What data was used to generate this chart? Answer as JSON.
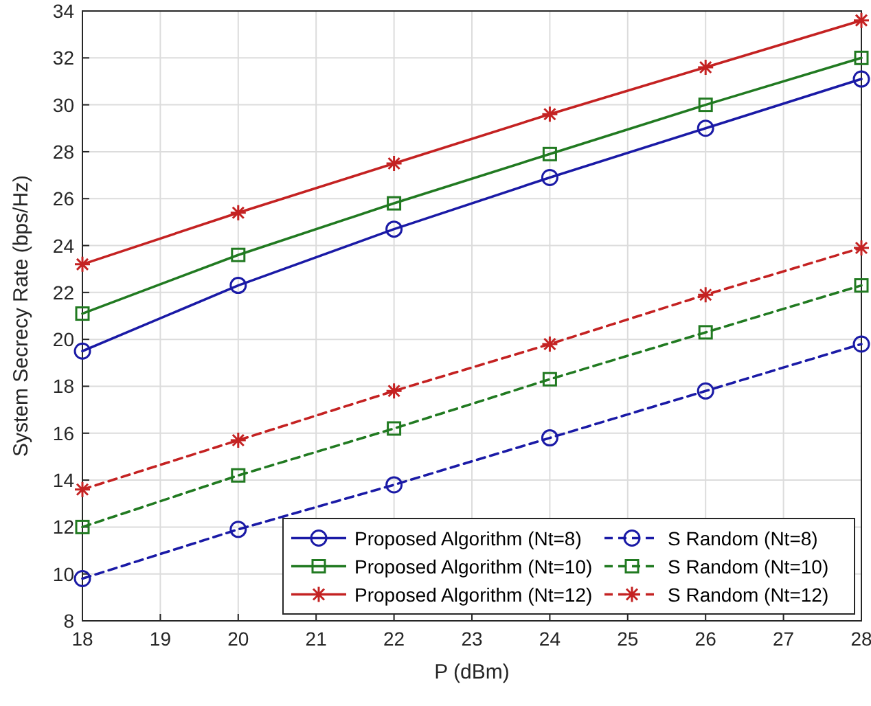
{
  "chart_data": {
    "type": "line",
    "xlabel": "P (dBm)",
    "ylabel": "System Secrecy Rate (bps/Hz)",
    "x": [
      18,
      20,
      22,
      24,
      26,
      28
    ],
    "xlim": [
      18,
      28
    ],
    "xticks": [
      18,
      19,
      20,
      21,
      22,
      23,
      24,
      25,
      26,
      27,
      28
    ],
    "ylim": [
      8,
      34
    ],
    "yticks": [
      8,
      10,
      12,
      14,
      16,
      18,
      20,
      22,
      24,
      26,
      28,
      30,
      32,
      34
    ],
    "grid": true,
    "legend": "bottom right",
    "series": [
      {
        "name": "Proposed Algorithm (Nt=8)",
        "color": "#1a1aa6",
        "marker": "circle",
        "line_style": "solid",
        "values": [
          19.5,
          22.3,
          24.7,
          26.9,
          29.0,
          31.1
        ]
      },
      {
        "name": "Proposed Algorithm (Nt=10)",
        "color": "#217a21",
        "marker": "square",
        "line_style": "solid",
        "values": [
          21.1,
          23.6,
          25.8,
          27.9,
          30.0,
          32.0
        ]
      },
      {
        "name": "Proposed Algorithm (Nt=12)",
        "color": "#c42222",
        "marker": "cross",
        "line_style": "solid",
        "values": [
          23.2,
          25.4,
          27.5,
          29.6,
          31.6,
          33.6
        ]
      },
      {
        "name": "S Random (Nt=8)",
        "color": "#1a1aa6",
        "marker": "circle",
        "line_style": "dashed",
        "values": [
          9.8,
          11.9,
          13.8,
          15.8,
          17.8,
          19.8
        ]
      },
      {
        "name": "S Random (Nt=10)",
        "color": "#217a21",
        "marker": "square",
        "line_style": "dashed",
        "values": [
          12.0,
          14.2,
          16.2,
          18.3,
          20.3,
          22.3
        ]
      },
      {
        "name": "S Random (Nt=12)",
        "color": "#c42222",
        "marker": "cross",
        "line_style": "dashed",
        "values": [
          13.6,
          15.7,
          17.8,
          19.8,
          21.9,
          23.9
        ]
      }
    ]
  }
}
